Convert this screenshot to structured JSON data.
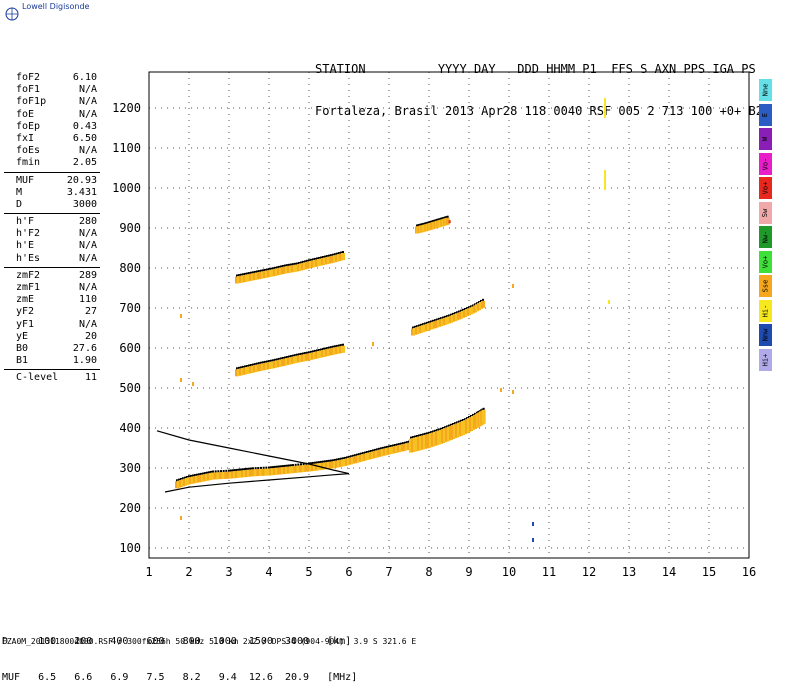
{
  "logo": "Lowell Digisonde",
  "header": {
    "line1": "STATION          YYYY DAY   DDD HHMM P1  FFS S AXN PPS IGA PS",
    "line2": "Fortaleza, Brasil 2013 Apr28 118 0040 RSF 005 2 713 100 +0+ B2"
  },
  "params": {
    "group1": [
      {
        "label": "foF2",
        "value": "6.10"
      },
      {
        "label": "foF1",
        "value": "N/A"
      },
      {
        "label": "foF1p",
        "value": "N/A"
      },
      {
        "label": "foE",
        "value": "N/A"
      },
      {
        "label": "foEp",
        "value": "0.43"
      },
      {
        "label": "fxI",
        "value": "6.50"
      },
      {
        "label": "foEs",
        "value": "N/A"
      },
      {
        "label": "fmin",
        "value": "2.05"
      }
    ],
    "group2": [
      {
        "label": "MUF",
        "value": "20.93"
      },
      {
        "label": "M",
        "value": "3.431"
      },
      {
        "label": "D",
        "value": "3000"
      }
    ],
    "group3": [
      {
        "label": "h'F",
        "value": "280"
      },
      {
        "label": "h'F2",
        "value": "N/A"
      },
      {
        "label": "h'E",
        "value": "N/A"
      },
      {
        "label": "h'Es",
        "value": "N/A"
      }
    ],
    "group4": [
      {
        "label": "zmF2",
        "value": "289"
      },
      {
        "label": "zmF1",
        "value": "N/A"
      },
      {
        "label": "zmE",
        "value": "110"
      },
      {
        "label": "yF2",
        "value": "27"
      },
      {
        "label": "yF1",
        "value": "N/A"
      },
      {
        "label": "yE",
        "value": "20"
      },
      {
        "label": "B0",
        "value": "27.6"
      },
      {
        "label": "B1",
        "value": "1.90"
      }
    ],
    "group5": [
      {
        "label": "C-level",
        "value": "11"
      }
    ]
  },
  "legend": [
    {
      "label": "Nne",
      "color": "#66e0e8"
    },
    {
      "label": "E",
      "color": "#2b5cc4"
    },
    {
      "label": "W",
      "color": "#8a1fb8"
    },
    {
      "label": "Vo-",
      "color": "#e81fc8"
    },
    {
      "label": "Vo+",
      "color": "#e8281f"
    },
    {
      "label": "Sw",
      "color": "#f0a8a8"
    },
    {
      "label": "Nw-",
      "color": "#1f9a2a"
    },
    {
      "label": "Vo+",
      "color": "#3fe03a"
    },
    {
      "label": "Sse",
      "color": "#f5a81f"
    },
    {
      "label": "Hi-",
      "color": "#f5e81f"
    },
    {
      "label": "Nnw",
      "color": "#1f4ab0"
    },
    {
      "label": "Hi+",
      "color": "#b0aae8"
    }
  ],
  "chart_data": {
    "type": "scatter",
    "xlim": [
      1,
      16
    ],
    "ylim": [
      75,
      1290
    ],
    "x_ticks": [
      1,
      2,
      3,
      4,
      5,
      6,
      7,
      8,
      9,
      10,
      11,
      12,
      13,
      14,
      15,
      16
    ],
    "y_ticks": [
      100,
      200,
      300,
      400,
      500,
      600,
      700,
      800,
      900,
      1000,
      1100,
      1200
    ],
    "grid": true,
    "traces": [
      {
        "name": "F-first",
        "x": [
          1.7,
          2.0,
          2.3,
          2.6,
          3.0,
          3.3,
          3.6,
          4.0,
          4.3,
          4.6,
          5.0,
          5.3,
          5.6,
          5.9,
          6.2,
          6.5,
          6.8,
          7.1,
          7.4,
          7.7,
          8.0,
          8.3,
          8.6,
          8.9,
          9.2,
          9.4
        ],
        "y": [
          258,
          268,
          274,
          280,
          282,
          285,
          288,
          290,
          293,
          296,
          300,
          304,
          308,
          314,
          322,
          330,
          338,
          345,
          352,
          360,
          368,
          378,
          390,
          402,
          418,
          430
        ]
      },
      {
        "name": "F-second",
        "x": [
          3.2,
          3.5,
          3.8,
          4.1,
          4.4,
          4.7,
          5.0,
          5.3,
          5.6,
          5.9
        ],
        "y": [
          538,
          545,
          552,
          558,
          565,
          572,
          578,
          585,
          592,
          598
        ]
      },
      {
        "name": "F-second-hi",
        "x": [
          7.6,
          7.9,
          8.2,
          8.5,
          8.8,
          9.1,
          9.4
        ],
        "y": [
          640,
          650,
          660,
          670,
          682,
          695,
          712
        ]
      },
      {
        "name": "F-third",
        "x": [
          3.2,
          3.5,
          3.8,
          4.1,
          4.4,
          4.7,
          5.0,
          5.3,
          5.6,
          5.9
        ],
        "y": [
          770,
          776,
          782,
          788,
          795,
          800,
          808,
          815,
          822,
          830
        ]
      },
      {
        "name": "F-third-hi",
        "x": [
          7.7,
          7.9,
          8.1,
          8.3,
          8.5
        ],
        "y": [
          895,
          900,
          906,
          912,
          918
        ]
      }
    ],
    "isolated_points": [
      {
        "x": 1.8,
        "y": 175
      },
      {
        "x": 1.8,
        "y": 520
      },
      {
        "x": 1.8,
        "y": 680
      },
      {
        "x": 12.5,
        "y": 715
      },
      {
        "x": 10.1,
        "y": 755
      },
      {
        "x": 10.6,
        "y": 120
      },
      {
        "x": 10.6,
        "y": 160
      },
      {
        "x": 9.8,
        "y": 495
      },
      {
        "x": 10.1,
        "y": 490
      },
      {
        "x": 12.4,
        "y": 1020
      },
      {
        "x": 12.4,
        "y": 1200
      },
      {
        "x": 6.6,
        "y": 610
      },
      {
        "x": 2.1,
        "y": 510
      }
    ],
    "profile": {
      "upper_x": [
        1.2,
        2.0,
        3.0,
        4.0,
        5.0,
        5.6,
        6.0
      ],
      "upper_y": [
        393,
        370,
        350,
        330,
        310,
        295,
        286
      ],
      "lower_x": [
        1.4,
        2.0,
        3.0,
        4.0,
        5.0,
        5.6,
        6.0
      ],
      "lower_y": [
        240,
        252,
        262,
        270,
        278,
        283,
        286
      ]
    }
  },
  "bottom_table": {
    "row1": "D     100   200   400   600   800  1000  1500  3000   [km]",
    "row2": "MUF   6.5   6.6   6.9   7.5   8.2   9.4  12.6  20.9   [MHz]"
  },
  "footer": "FZA0M_2013118004000.RSF / 300fx256h 50 kHz 5.0 km 2x2 / DPS-4 (904-904)  3.9 S 321.6 E"
}
